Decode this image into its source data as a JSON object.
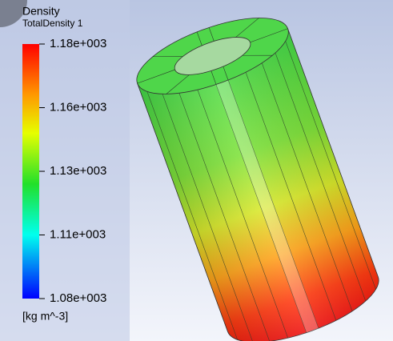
{
  "legend": {
    "title": "Density",
    "variable": "TotalDensity 1",
    "ticks": [
      "1.18e+003",
      "1.16e+003",
      "1.13e+003",
      "1.11e+003",
      "1.08e+003"
    ],
    "units": "[kg m^-3]"
  }
}
